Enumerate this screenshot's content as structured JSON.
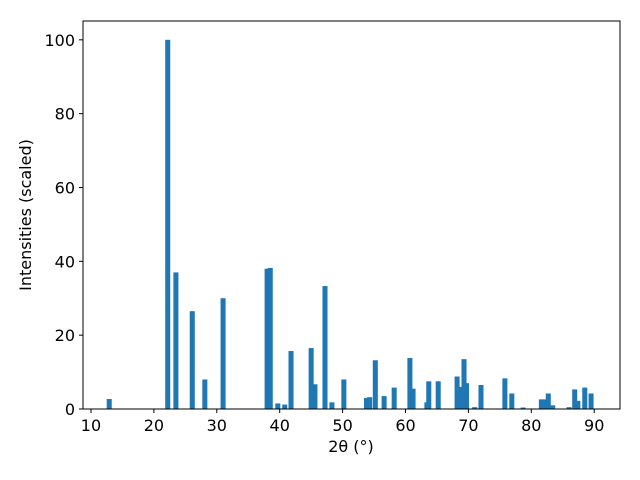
{
  "chart_data": {
    "type": "bar",
    "xlabel": "2θ (°)",
    "ylabel": "Intensities (scaled)",
    "x": [
      12.9,
      22.2,
      23.5,
      26.1,
      28.1,
      31.0,
      38.0,
      38.5,
      39.7,
      40.8,
      41.8,
      45.0,
      45.6,
      47.2,
      48.3,
      50.2,
      53.8,
      54.3,
      55.2,
      56.6,
      58.2,
      60.7,
      61.2,
      63.4,
      63.7,
      65.2,
      68.2,
      68.7,
      69.3,
      69.7,
      71.0,
      72.0,
      75.8,
      76.9,
      78.7,
      81.6,
      82.0,
      82.7,
      83.4,
      86.0,
      86.9,
      87.4,
      88.5,
      89.5
    ],
    "values": [
      2.7,
      100,
      37,
      26.5,
      8,
      30,
      38,
      38.2,
      1.5,
      1.2,
      15.7,
      16.5,
      6.7,
      33.3,
      1.8,
      8,
      3,
      3.2,
      13.2,
      3.5,
      5.8,
      13.8,
      5.5,
      1.8,
      7.5,
      7.5,
      8.8,
      6,
      13.5,
      7,
      0.5,
      6.5,
      8.3,
      4.2,
      0.4,
      2.6,
      2.6,
      4.2,
      1,
      0.5,
      5.3,
      2.2,
      5.8,
      4.2
    ],
    "color": "#1f77b4",
    "xlim": [
      8.73,
      94.1
    ],
    "ylim": [
      0,
      105.1
    ],
    "xticks": [
      10,
      20,
      30,
      40,
      50,
      60,
      70,
      80,
      90
    ],
    "yticks": [
      0,
      20,
      40,
      60,
      80,
      100
    ],
    "grid": false
  }
}
